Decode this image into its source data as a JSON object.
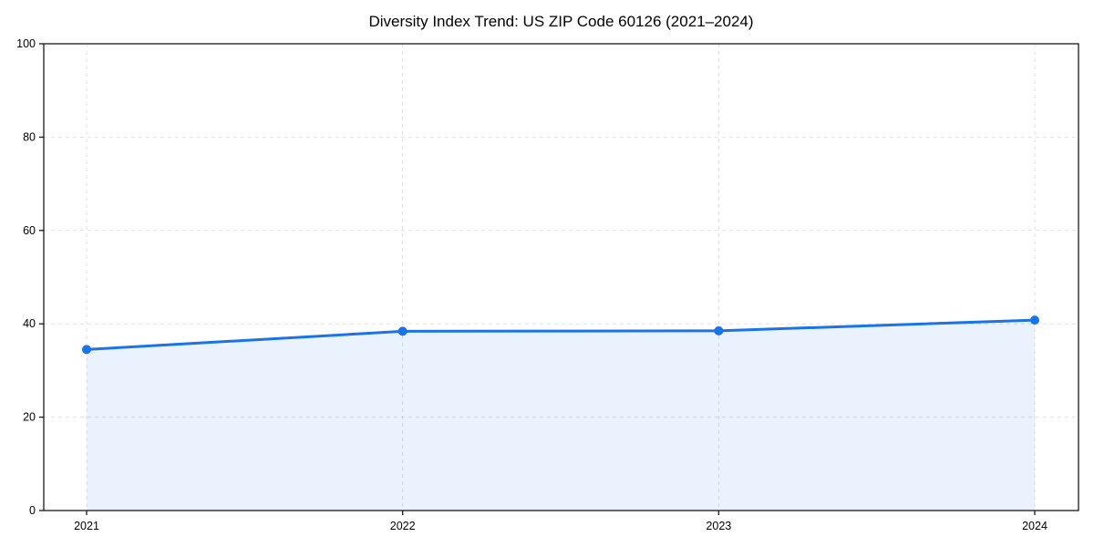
{
  "chart_data": {
    "type": "area",
    "title": "Diversity Index Trend: US ZIP Code 60126 (2021–2024)",
    "series_name": "Diversity Index",
    "categories": [
      "2021",
      "2022",
      "2023",
      "2024"
    ],
    "x": [
      2021,
      2022,
      2023,
      2024
    ],
    "values": [
      34.5,
      38.4,
      38.5,
      40.8
    ],
    "xlabel": "",
    "ylabel": "",
    "ylim": [
      0,
      100
    ],
    "yticks": [
      0,
      20,
      40,
      60,
      80,
      100
    ],
    "xtick_labels": [
      "2021",
      "2022",
      "2023",
      "2024"
    ],
    "grid": true,
    "grid_style": "dashed",
    "legend_position": "none",
    "colors": {
      "line": "#1a73e8",
      "marker": "#1a73e8",
      "fill": "rgba(26,115,232,0.09)",
      "grid": "#e2e2e2",
      "spine": "#1a1a1a",
      "tick": "#1a1a1a",
      "text": "#000000",
      "background": "#ffffff"
    }
  }
}
